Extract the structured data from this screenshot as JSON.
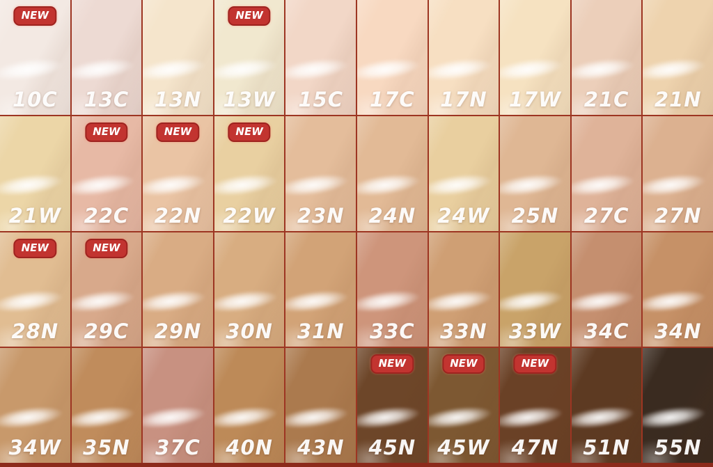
{
  "badge": {
    "label": "NEW",
    "background": "#c23430",
    "border": "#9c2722",
    "text_color": "#ffffff"
  },
  "colors": {
    "grid_line": "#9d3522",
    "bottom_bar": "#8c2a1b",
    "label_text": "#ffffff"
  },
  "chart_data": {
    "type": "table",
    "rows": 4,
    "columns": 10,
    "legend": "foundation-shade-swatch-grid",
    "shades": [
      {
        "code": "10C",
        "color": "#f3e9e3",
        "new": true
      },
      {
        "code": "13C",
        "color": "#eddad3",
        "new": false
      },
      {
        "code": "13N",
        "color": "#f5e5cc",
        "new": false
      },
      {
        "code": "13W",
        "color": "#f1e8cf",
        "new": true
      },
      {
        "code": "15C",
        "color": "#f2d7c7",
        "new": false
      },
      {
        "code": "17C",
        "color": "#f8d9c1",
        "new": false
      },
      {
        "code": "17N",
        "color": "#f7dfc2",
        "new": false
      },
      {
        "code": "17W",
        "color": "#f6e2c1",
        "new": false
      },
      {
        "code": "21C",
        "color": "#eccfba",
        "new": false
      },
      {
        "code": "21N",
        "color": "#eed3ae",
        "new": false
      },
      {
        "code": "21W",
        "color": "#ecd6a7",
        "new": false
      },
      {
        "code": "22C",
        "color": "#e7b9a5",
        "new": true
      },
      {
        "code": "22N",
        "color": "#eac4a4",
        "new": true
      },
      {
        "code": "22W",
        "color": "#e9d0a1",
        "new": true
      },
      {
        "code": "23N",
        "color": "#e4bd9b",
        "new": false
      },
      {
        "code": "24N",
        "color": "#e2ba96",
        "new": false
      },
      {
        "code": "24W",
        "color": "#e9cf9f",
        "new": false
      },
      {
        "code": "25N",
        "color": "#dfb794",
        "new": false
      },
      {
        "code": "27C",
        "color": "#dfb399",
        "new": false
      },
      {
        "code": "27N",
        "color": "#dcb190",
        "new": false
      },
      {
        "code": "28N",
        "color": "#e1bd92",
        "new": true
      },
      {
        "code": "29C",
        "color": "#d8a98b",
        "new": true
      },
      {
        "code": "29N",
        "color": "#d9ac84",
        "new": false
      },
      {
        "code": "30N",
        "color": "#d8ad81",
        "new": false
      },
      {
        "code": "31N",
        "color": "#d2a377",
        "new": false
      },
      {
        "code": "33C",
        "color": "#ce957b",
        "new": false
      },
      {
        "code": "33N",
        "color": "#cf9f74",
        "new": false
      },
      {
        "code": "33W",
        "color": "#c9a369",
        "new": false
      },
      {
        "code": "34C",
        "color": "#c58f6f",
        "new": false
      },
      {
        "code": "34N",
        "color": "#c69167",
        "new": false
      },
      {
        "code": "34W",
        "color": "#c8996b",
        "new": false
      },
      {
        "code": "35N",
        "color": "#c08c5c",
        "new": false
      },
      {
        "code": "37C",
        "color": "#c89181",
        "new": false
      },
      {
        "code": "40N",
        "color": "#bd8a58",
        "new": false
      },
      {
        "code": "43N",
        "color": "#ab7a4e",
        "new": false
      },
      {
        "code": "45N",
        "color": "#6d4629",
        "new": true
      },
      {
        "code": "45W",
        "color": "#7d5832",
        "new": true
      },
      {
        "code": "47N",
        "color": "#6a4126",
        "new": true
      },
      {
        "code": "51N",
        "color": "#5d3a22",
        "new": false
      },
      {
        "code": "55N",
        "color": "#3a2b20",
        "new": false
      }
    ]
  }
}
